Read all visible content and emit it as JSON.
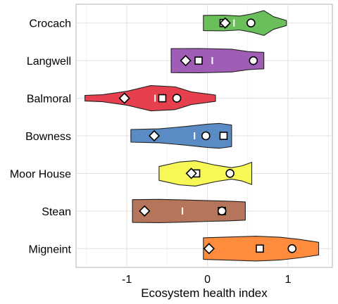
{
  "chart_data": {
    "type": "violin",
    "xlabel": "Ecosystem health index",
    "ylabel": "",
    "xlim": [
      -1.63,
      1.55
    ],
    "xticks": [
      -1,
      0,
      1
    ],
    "xtick_labels": [
      "-1",
      "0",
      "1"
    ],
    "grid": true,
    "legend": "none",
    "categories": [
      "Crocach",
      "Langwell",
      "Balmoral",
      "Bowness",
      "Moor House",
      "Stean",
      "Migneint"
    ],
    "series": [
      {
        "category": "Crocach",
        "color": "#6ABF5A",
        "min": -0.05,
        "max": 0.98,
        "median": 0.33,
        "circle": 0.54,
        "square": 0.2,
        "diamond": 0.22,
        "profile": [
          [
            -0.05,
            0.6
          ],
          [
            0.2,
            0.62
          ],
          [
            0.4,
            0.55
          ],
          [
            0.55,
            0.72
          ],
          [
            0.7,
            0.98
          ],
          [
            0.82,
            0.5
          ],
          [
            0.98,
            0.2
          ]
        ]
      },
      {
        "category": "Langwell",
        "color": "#A05DB5",
        "min": -0.45,
        "max": 0.7,
        "median": 0.06,
        "circle": 0.57,
        "square": -0.11,
        "diamond": -0.27,
        "profile": [
          [
            -0.45,
            0.95
          ],
          [
            -0.1,
            0.96
          ],
          [
            0.3,
            0.9
          ],
          [
            0.5,
            0.72
          ],
          [
            0.6,
            0.68
          ],
          [
            0.7,
            0.65
          ]
        ]
      },
      {
        "category": "Balmoral",
        "color": "#E6404F",
        "min": -1.52,
        "max": 0.1,
        "median": -0.65,
        "circle": -0.38,
        "square": -0.56,
        "diamond": -1.03,
        "profile": [
          [
            -1.52,
            0.22
          ],
          [
            -1.3,
            0.28
          ],
          [
            -1.0,
            0.55
          ],
          [
            -0.7,
            1.0
          ],
          [
            -0.4,
            0.9
          ],
          [
            -0.2,
            0.5
          ],
          [
            0.1,
            0.25
          ]
        ]
      },
      {
        "category": "Bowness",
        "color": "#5B8BC4",
        "min": -0.95,
        "max": 0.3,
        "median": -0.16,
        "circle": -0.02,
        "square": 0.2,
        "diamond": -0.66,
        "profile": [
          [
            -0.95,
            0.5
          ],
          [
            -0.6,
            0.55
          ],
          [
            -0.3,
            0.72
          ],
          [
            0.0,
            0.92
          ],
          [
            0.15,
            0.98
          ],
          [
            0.3,
            0.85
          ]
        ]
      },
      {
        "category": "Moor House",
        "color": "#F7F755",
        "min": -0.6,
        "max": 0.55,
        "median": -0.13,
        "circle": 0.28,
        "square": -0.14,
        "diamond": -0.2,
        "profile": [
          [
            -0.6,
            0.55
          ],
          [
            -0.35,
            0.9
          ],
          [
            -0.15,
            1.0
          ],
          [
            0.1,
            0.65
          ],
          [
            0.3,
            0.45
          ],
          [
            0.43,
            0.6
          ],
          [
            0.55,
            0.88
          ]
        ]
      },
      {
        "category": "Stean",
        "color": "#B5755A",
        "min": -0.93,
        "max": 0.47,
        "median": -0.31,
        "circle": 0.18,
        "square": 0.18,
        "diamond": -0.78,
        "profile": [
          [
            -0.93,
            0.9
          ],
          [
            -0.6,
            0.92
          ],
          [
            -0.3,
            0.88
          ],
          [
            0.0,
            0.82
          ],
          [
            0.25,
            0.78
          ],
          [
            0.47,
            0.72
          ]
        ]
      },
      {
        "category": "Migneint",
        "color": "#FF8C3C",
        "min": -0.05,
        "max": 1.38,
        "median": 0.62,
        "circle": 1.05,
        "square": 0.65,
        "diamond": 0.02,
        "profile": [
          [
            -0.05,
            0.85
          ],
          [
            0.3,
            0.92
          ],
          [
            0.6,
            0.98
          ],
          [
            0.9,
            0.9
          ],
          [
            1.15,
            0.72
          ],
          [
            1.38,
            0.5
          ]
        ]
      }
    ]
  }
}
